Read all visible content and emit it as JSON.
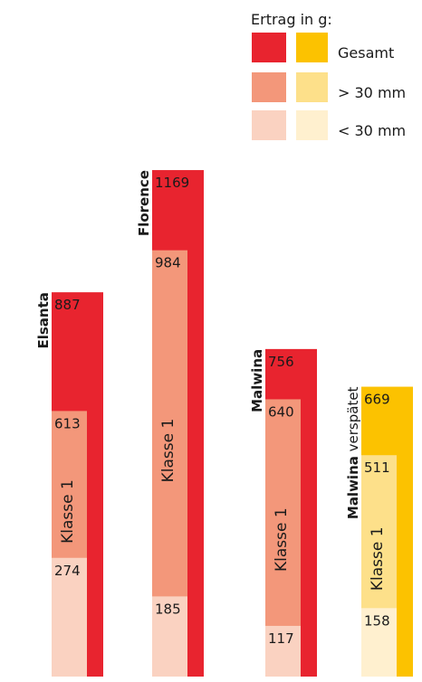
{
  "chart_data": {
    "type": "bar",
    "legend": {
      "title": "Ertrag in g:",
      "entries": [
        {
          "label": "Gesamt",
          "colors": [
            "#e8242f",
            "#fcc200"
          ]
        },
        {
          "label": "> 30 mm",
          "colors": [
            "#f3977a",
            "#fde08a"
          ]
        },
        {
          "label": "< 30 mm",
          "colors": [
            "#fad2c1",
            "#fff0cf"
          ]
        }
      ],
      "placement": "top-right"
    },
    "class_label": "Klasse 1",
    "ylim": [
      0,
      1200
    ],
    "series": [
      {
        "name": "Elsanta",
        "name_suffix": "",
        "palette": "red",
        "gesamt": 887,
        "gt30": 613,
        "lt30": 274
      },
      {
        "name": "Florence",
        "name_suffix": "",
        "palette": "red",
        "gesamt": 1169,
        "gt30": 984,
        "lt30": 185
      },
      {
        "name": "Malwina",
        "name_suffix": "",
        "palette": "red",
        "gesamt": 756,
        "gt30": 640,
        "lt30": 117
      },
      {
        "name": "Malwina",
        "name_suffix": " verspätet",
        "palette": "yellow",
        "gesamt": 669,
        "gt30": 511,
        "lt30": 158
      }
    ],
    "colors": {
      "red": {
        "gesamt": "#e8242f",
        "gt30": "#f3977a",
        "lt30": "#fad2c1"
      },
      "yellow": {
        "gesamt": "#fcc200",
        "gt30": "#fde08a",
        "lt30": "#fff0cf"
      }
    }
  }
}
